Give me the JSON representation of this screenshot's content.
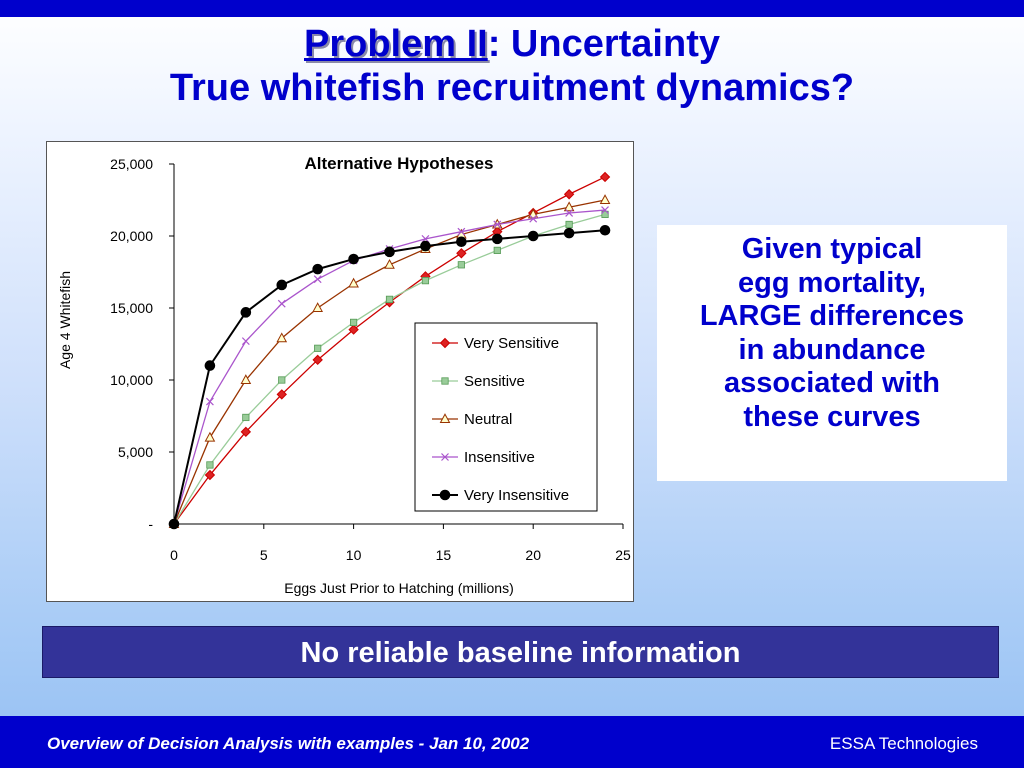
{
  "slide": {
    "title_line1_underlined": "Problem II",
    "title_line1_rest": ": Uncertainty",
    "title_line2": "True whitefish recruitment dynamics?",
    "callout_lines": [
      "Given typical",
      "egg mortality,",
      "LARGE differences",
      "in abundance",
      "associated with",
      "these curves"
    ],
    "banner": "No reliable baseline information",
    "footer_left": "Overview of Decision Analysis with examples - Jan 10, 2002",
    "footer_right": "ESSA Technologies"
  },
  "chart_data": {
    "type": "line",
    "title": "Alternative Hypotheses",
    "xlabel": "Eggs Just Prior to Hatching (millions)",
    "ylabel": "Age 4 Whitefish",
    "xlim": [
      0,
      25
    ],
    "ylim": [
      0,
      25000
    ],
    "x_ticks": [
      0,
      5,
      10,
      15,
      20,
      25
    ],
    "x_tick_labels": [
      "0",
      "5",
      "10",
      "15",
      "20",
      "25"
    ],
    "y_ticks": [
      0,
      5000,
      10000,
      15000,
      20000,
      25000
    ],
    "y_tick_labels": [
      "-",
      "5,000",
      "10,000",
      "15,000",
      "20,000",
      "25,000"
    ],
    "grid": false,
    "legend_position": "right-middle",
    "x": [
      0,
      2,
      4,
      6,
      8,
      10,
      12,
      14,
      16,
      18,
      20,
      22,
      24
    ],
    "series": [
      {
        "name": "Very Sensitive",
        "color": "#cc0000",
        "marker": "diamond",
        "marker_fill": "#dd2222",
        "values": [
          0,
          3400,
          6400,
          9000,
          11400,
          13500,
          15400,
          17200,
          18800,
          20300,
          21600,
          22900,
          24100
        ]
      },
      {
        "name": "Sensitive",
        "color": "#99cc99",
        "marker": "square",
        "marker_fill": "#99cc99",
        "values": [
          0,
          4100,
          7400,
          10000,
          12200,
          14000,
          15600,
          16900,
          18000,
          19000,
          20000,
          20800,
          21500
        ]
      },
      {
        "name": "Neutral",
        "color": "#993300",
        "marker": "triangle",
        "marker_fill": "#ffffcc",
        "values": [
          0,
          6000,
          10000,
          12900,
          15000,
          16700,
          18000,
          19100,
          20100,
          20800,
          21500,
          22000,
          22500
        ]
      },
      {
        "name": "Insensitive",
        "color": "#aa55cc",
        "marker": "x",
        "marker_fill": "none",
        "values": [
          0,
          8500,
          12700,
          15300,
          17000,
          18300,
          19100,
          19800,
          20300,
          20800,
          21200,
          21600,
          21800
        ]
      },
      {
        "name": "Very Insensitive",
        "color": "#000000",
        "marker": "circle",
        "marker_fill": "#000000",
        "values": [
          0,
          11000,
          14700,
          16600,
          17700,
          18400,
          18900,
          19300,
          19600,
          19800,
          20000,
          20200,
          20400
        ]
      }
    ]
  }
}
